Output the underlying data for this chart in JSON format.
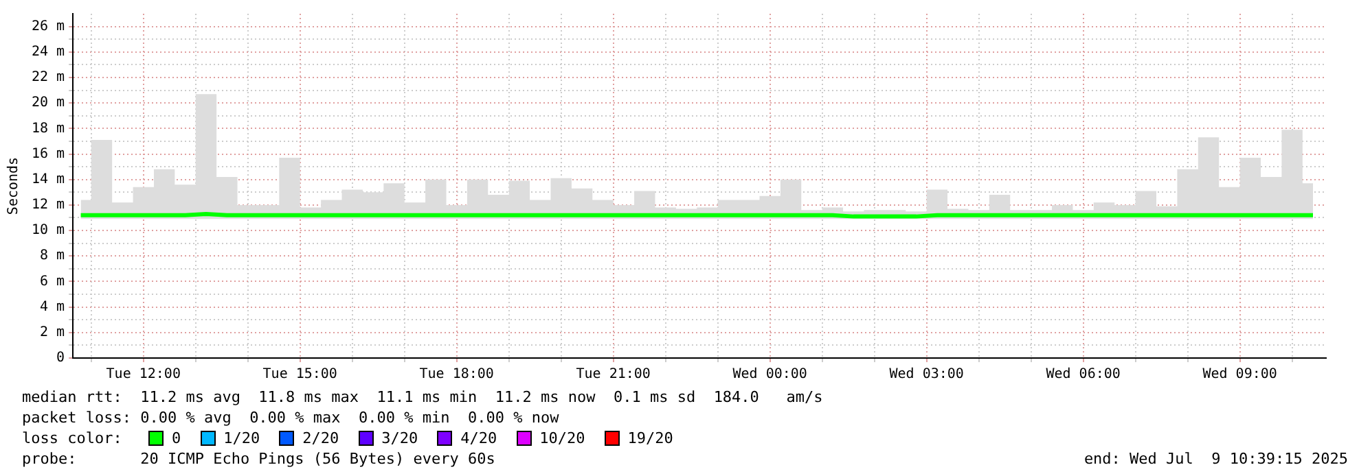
{
  "chart_data": {
    "type": "line",
    "ylabel": "Seconds",
    "legend_title": "loss color:",
    "legend": "bottom",
    "grid": true,
    "xlim": [
      "2025-07-08T10:39",
      "2025-07-09T10:39"
    ],
    "xticks": [
      {
        "value": "2025-07-08T11:00",
        "label": null
      },
      {
        "value": "2025-07-08T12:00",
        "label": "Tue 12:00"
      },
      {
        "value": "2025-07-08T13:00",
        "label": null
      },
      {
        "value": "2025-07-08T14:00",
        "label": null
      },
      {
        "value": "2025-07-08T15:00",
        "label": "Tue 15:00"
      },
      {
        "value": "2025-07-08T16:00",
        "label": null
      },
      {
        "value": "2025-07-08T17:00",
        "label": null
      },
      {
        "value": "2025-07-08T18:00",
        "label": "Tue 18:00"
      },
      {
        "value": "2025-07-08T19:00",
        "label": null
      },
      {
        "value": "2025-07-08T20:00",
        "label": null
      },
      {
        "value": "2025-07-08T21:00",
        "label": "Tue 21:00"
      },
      {
        "value": "2025-07-08T22:00",
        "label": null
      },
      {
        "value": "2025-07-08T23:00",
        "label": null
      },
      {
        "value": "2025-07-09T00:00",
        "label": "Wed 00:00"
      },
      {
        "value": "2025-07-09T01:00",
        "label": null
      },
      {
        "value": "2025-07-09T02:00",
        "label": null
      },
      {
        "value": "2025-07-09T03:00",
        "label": "Wed 03:00"
      },
      {
        "value": "2025-07-09T04:00",
        "label": null
      },
      {
        "value": "2025-07-09T05:00",
        "label": null
      },
      {
        "value": "2025-07-09T06:00",
        "label": "Wed 06:00"
      },
      {
        "value": "2025-07-09T07:00",
        "label": null
      },
      {
        "value": "2025-07-09T08:00",
        "label": null
      },
      {
        "value": "2025-07-09T09:00",
        "label": "Wed 09:00"
      },
      {
        "value": "2025-07-09T10:00",
        "label": null
      }
    ],
    "ylim": [
      0,
      27
    ],
    "yticks": [
      {
        "value": 0,
        "label": "0"
      },
      {
        "value": 1,
        "label": null
      },
      {
        "value": 2,
        "label": "2 m"
      },
      {
        "value": 3,
        "label": null
      },
      {
        "value": 4,
        "label": "4 m"
      },
      {
        "value": 5,
        "label": null
      },
      {
        "value": 6,
        "label": "6 m"
      },
      {
        "value": 7,
        "label": null
      },
      {
        "value": 8,
        "label": "8 m"
      },
      {
        "value": 9,
        "label": null
      },
      {
        "value": 10,
        "label": "10 m"
      },
      {
        "value": 11,
        "label": null
      },
      {
        "value": 12,
        "label": "12 m"
      },
      {
        "value": 13,
        "label": null
      },
      {
        "value": 14,
        "label": "14 m"
      },
      {
        "value": 15,
        "label": null
      },
      {
        "value": 16,
        "label": "16 m"
      },
      {
        "value": 17,
        "label": null
      },
      {
        "value": 18,
        "label": "18 m"
      },
      {
        "value": 19,
        "label": null
      },
      {
        "value": 20,
        "label": "20 m"
      },
      {
        "value": 21,
        "label": null
      },
      {
        "value": 22,
        "label": "22 m"
      },
      {
        "value": 23,
        "label": null
      },
      {
        "value": 24,
        "label": "24 m"
      },
      {
        "value": 25,
        "label": null
      },
      {
        "value": 26,
        "label": "26 m"
      }
    ],
    "x": [
      "2025-07-08T10:48",
      "2025-07-08T11:12",
      "2025-07-08T11:36",
      "2025-07-08T12:00",
      "2025-07-08T12:24",
      "2025-07-08T12:48",
      "2025-07-08T13:12",
      "2025-07-08T13:36",
      "2025-07-08T14:00",
      "2025-07-08T14:24",
      "2025-07-08T14:48",
      "2025-07-08T15:12",
      "2025-07-08T15:36",
      "2025-07-08T16:00",
      "2025-07-08T16:24",
      "2025-07-08T16:48",
      "2025-07-08T17:12",
      "2025-07-08T17:36",
      "2025-07-08T18:00",
      "2025-07-08T18:24",
      "2025-07-08T18:48",
      "2025-07-08T19:12",
      "2025-07-08T19:36",
      "2025-07-08T20:00",
      "2025-07-08T20:24",
      "2025-07-08T20:48",
      "2025-07-08T21:12",
      "2025-07-08T21:36",
      "2025-07-08T22:00",
      "2025-07-08T22:24",
      "2025-07-08T22:48",
      "2025-07-08T23:12",
      "2025-07-08T23:36",
      "2025-07-09T00:00",
      "2025-07-09T00:24",
      "2025-07-09T00:48",
      "2025-07-09T01:12",
      "2025-07-09T01:36",
      "2025-07-09T02:00",
      "2025-07-09T02:24",
      "2025-07-09T02:48",
      "2025-07-09T03:12",
      "2025-07-09T03:36",
      "2025-07-09T04:00",
      "2025-07-09T04:24",
      "2025-07-09T04:48",
      "2025-07-09T05:12",
      "2025-07-09T05:36",
      "2025-07-09T06:00",
      "2025-07-09T06:24",
      "2025-07-09T06:48",
      "2025-07-09T07:12",
      "2025-07-09T07:36",
      "2025-07-09T08:00",
      "2025-07-09T08:24",
      "2025-07-09T08:48",
      "2025-07-09T09:12",
      "2025-07-09T09:36",
      "2025-07-09T10:00",
      "2025-07-09T10:24"
    ],
    "series": [
      {
        "name": "0",
        "color": "#00ff00",
        "values": [
          11.2,
          11.2,
          11.2,
          11.2,
          11.2,
          11.2,
          11.3,
          11.2,
          11.2,
          11.2,
          11.2,
          11.2,
          11.2,
          11.2,
          11.2,
          11.2,
          11.2,
          11.2,
          11.2,
          11.2,
          11.2,
          11.2,
          11.2,
          11.2,
          11.2,
          11.2,
          11.2,
          11.2,
          11.2,
          11.2,
          11.2,
          11.2,
          11.2,
          11.2,
          11.2,
          11.2,
          11.2,
          11.1,
          11.1,
          11.1,
          11.1,
          11.2,
          11.2,
          11.2,
          11.2,
          11.2,
          11.2,
          11.2,
          11.2,
          11.2,
          11.2,
          11.2,
          11.2,
          11.2,
          11.2,
          11.2,
          11.2,
          11.2,
          11.2,
          11.2
        ],
        "lower": [
          10.9,
          10.9,
          10.9,
          10.9,
          10.9,
          10.9,
          10.9,
          10.9,
          10.9,
          10.9,
          10.9,
          10.9,
          10.9,
          10.9,
          10.9,
          10.9,
          10.9,
          10.9,
          10.9,
          10.9,
          10.9,
          10.9,
          10.9,
          10.9,
          10.9,
          10.9,
          10.9,
          10.9,
          10.9,
          10.9,
          10.9,
          10.9,
          10.9,
          10.9,
          10.9,
          10.9,
          10.9,
          10.9,
          10.9,
          10.9,
          10.9,
          10.9,
          10.9,
          10.9,
          10.9,
          10.9,
          10.9,
          10.9,
          10.9,
          10.9,
          10.9,
          10.9,
          10.9,
          10.9,
          10.9,
          10.9,
          10.9,
          10.9,
          10.9,
          10.9
        ],
        "upper": [
          12.4,
          17.1,
          12.2,
          13.4,
          14.8,
          13.6,
          20.7,
          14.2,
          12.0,
          12.0,
          15.7,
          11.8,
          12.4,
          13.2,
          13.0,
          13.7,
          12.2,
          14.0,
          12.0,
          14.0,
          12.8,
          13.9,
          12.4,
          14.1,
          13.3,
          12.4,
          12.0,
          13.1,
          11.8,
          11.7,
          11.8,
          12.4,
          12.4,
          12.7,
          14.0,
          11.6,
          11.8,
          11.5,
          11.6,
          11.6,
          11.5,
          13.2,
          11.7,
          11.6,
          12.8,
          11.6,
          11.6,
          12.0,
          11.6,
          12.2,
          12.0,
          13.1,
          11.9,
          14.8,
          17.3,
          13.4,
          15.7,
          14.2,
          17.9,
          13.7
        ]
      },
      {
        "name": "1/20",
        "color": "#00b8ff",
        "values": [
          null,
          null,
          null,
          null,
          null,
          null,
          null,
          null,
          null,
          null,
          null,
          null,
          null,
          null,
          null,
          null,
          null,
          null,
          null,
          null,
          null,
          null,
          null,
          null,
          null,
          null,
          null,
          null,
          null,
          null,
          null,
          null,
          null,
          null,
          null,
          null,
          null,
          null,
          null,
          null,
          null,
          null,
          null,
          null,
          null,
          null,
          null,
          null,
          null,
          null,
          null,
          null,
          null,
          null,
          null,
          null,
          null,
          null,
          null,
          null
        ]
      },
      {
        "name": "2/20",
        "color": "#0059ff",
        "values": [
          null,
          null,
          null,
          null,
          null,
          null,
          null,
          null,
          null,
          null,
          null,
          null,
          null,
          null,
          null,
          null,
          null,
          null,
          null,
          null,
          null,
          null,
          null,
          null,
          null,
          null,
          null,
          null,
          null,
          null,
          null,
          null,
          null,
          null,
          null,
          null,
          null,
          null,
          null,
          null,
          null,
          null,
          null,
          null,
          null,
          null,
          null,
          null,
          null,
          null,
          null,
          null,
          null,
          null,
          null,
          null,
          null,
          null,
          null,
          null
        ]
      },
      {
        "name": "3/20",
        "color": "#5e00ff",
        "values": [
          null,
          null,
          null,
          null,
          null,
          null,
          null,
          null,
          null,
          null,
          null,
          null,
          null,
          null,
          null,
          null,
          null,
          null,
          null,
          null,
          null,
          null,
          null,
          null,
          null,
          null,
          null,
          null,
          null,
          null,
          null,
          null,
          null,
          null,
          null,
          null,
          null,
          null,
          null,
          null,
          null,
          null,
          null,
          null,
          null,
          null,
          null,
          null,
          null,
          null,
          null,
          null,
          null,
          null,
          null,
          null,
          null,
          null,
          null,
          null
        ]
      },
      {
        "name": "4/20",
        "color": "#7e00ff",
        "values": [
          null,
          null,
          null,
          null,
          null,
          null,
          null,
          null,
          null,
          null,
          null,
          null,
          null,
          null,
          null,
          null,
          null,
          null,
          null,
          null,
          null,
          null,
          null,
          null,
          null,
          null,
          null,
          null,
          null,
          null,
          null,
          null,
          null,
          null,
          null,
          null,
          null,
          null,
          null,
          null,
          null,
          null,
          null,
          null,
          null,
          null,
          null,
          null,
          null,
          null,
          null,
          null,
          null,
          null,
          null,
          null,
          null,
          null,
          null,
          null
        ]
      },
      {
        "name": "10/20",
        "color": "#dd00ff",
        "values": [
          null,
          null,
          null,
          null,
          null,
          null,
          null,
          null,
          null,
          null,
          null,
          null,
          null,
          null,
          null,
          null,
          null,
          null,
          null,
          null,
          null,
          null,
          null,
          null,
          null,
          null,
          null,
          null,
          null,
          null,
          null,
          null,
          null,
          null,
          null,
          null,
          null,
          null,
          null,
          null,
          null,
          null,
          null,
          null,
          null,
          null,
          null,
          null,
          null,
          null,
          null,
          null,
          null,
          null,
          null,
          null,
          null,
          null,
          null,
          null
        ]
      },
      {
        "name": "19/20",
        "color": "#ff0000",
        "values": [
          null,
          null,
          null,
          null,
          null,
          null,
          null,
          null,
          null,
          null,
          null,
          null,
          null,
          null,
          null,
          null,
          null,
          null,
          null,
          null,
          null,
          null,
          null,
          null,
          null,
          null,
          null,
          null,
          null,
          null,
          null,
          null,
          null,
          null,
          null,
          null,
          null,
          null,
          null,
          null,
          null,
          null,
          null,
          null,
          null,
          null,
          null,
          null,
          null,
          null,
          null,
          null,
          null,
          null,
          null,
          null,
          null,
          null,
          null,
          null
        ]
      }
    ],
    "annotations": [
      "median rtt:  11.2 ms avg  11.8 ms max  11.1 ms min  11.2 ms now  0.1 ms sd  184.0   am/s",
      "packet loss: 0.00 % avg  0.00 % max  0.00 % min  0.00 % now",
      "probe:       20 ICMP Echo Pings (56 Bytes) every 60s",
      "end: Wed Jul  9 10:39:15 2025"
    ]
  }
}
